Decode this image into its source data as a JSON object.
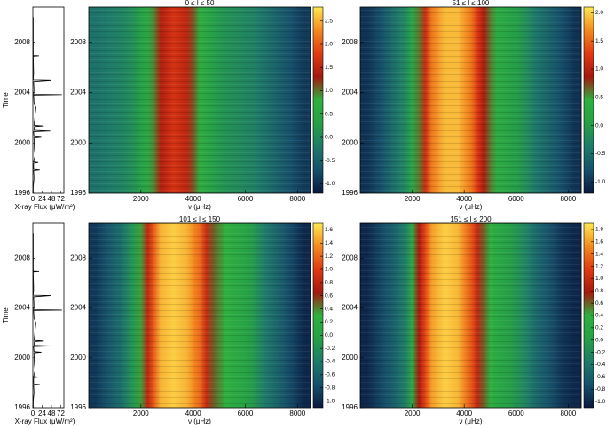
{
  "chart_data": [
    {
      "type": "line",
      "xlabel": "X-ray Flux (μW/m²)",
      "ylabel": "Time",
      "color": "#000000",
      "xlim": [
        0,
        80
      ],
      "xticks": [
        0,
        24,
        48,
        72
      ],
      "ylim": [
        1996,
        2010.8
      ],
      "yticks": [
        1996,
        2000,
        2004,
        2008
      ],
      "y": [
        1996,
        1996.5,
        1997.2,
        1997.8,
        1997.85,
        1997.9,
        1998.4,
        1998.45,
        1998.5,
        1999.0,
        1999.5,
        2000.4,
        2000.45,
        2000.5,
        2000.9,
        2000.95,
        2001.0,
        2001.3,
        2001.35,
        2001.4,
        2001.9,
        2002.3,
        2002.8,
        2003.2,
        2003.8,
        2003.83,
        2003.86,
        2004.2,
        2004.9,
        2005.0,
        2005.03,
        2005.06,
        2005.5,
        2006.9,
        2006.93,
        2006.96,
        2008,
        2010
      ],
      "values": [
        1,
        1,
        3,
        2,
        18,
        2,
        2,
        14,
        2,
        6,
        4,
        3,
        22,
        3,
        2,
        45,
        3,
        4,
        28,
        3,
        5,
        6,
        8,
        3,
        2,
        75,
        2,
        3,
        2,
        48,
        2,
        1,
        2,
        1,
        16,
        1,
        1,
        1
      ]
    },
    {
      "type": "heatmap",
      "title": "0 ≤ l ≤ 50",
      "xlabel": "ν (μHz)",
      "xlim": [
        0,
        8500
      ],
      "xticks": [
        2000,
        4000,
        6000,
        8000
      ],
      "ylim": [
        1996,
        2010.8
      ],
      "yticks": [
        1996,
        2000,
        2004,
        2008
      ],
      "x": [
        250,
        750,
        1250,
        1750,
        2250,
        2750,
        3250,
        3750,
        4250,
        4750,
        5250,
        5750,
        6250,
        6750,
        7250,
        7750,
        8250
      ],
      "values": [
        -0.3,
        -0.2,
        -0.1,
        0.1,
        0.5,
        1.4,
        1.7,
        1.5,
        0.7,
        0.3,
        0.1,
        0.0,
        -0.1,
        -0.3,
        -0.5,
        -0.7,
        -0.9
      ],
      "zlim": [
        -1.2,
        2.8
      ],
      "zticks": [
        {
          "value": -1.0,
          "label": "-1.0"
        },
        -0.5,
        {
          "value": 0,
          "label": "0.0"
        },
        0.5,
        {
          "value": 1,
          "label": "1.0"
        },
        1.5,
        {
          "value": 2,
          "label": "2.0"
        },
        2.5
      ],
      "colormap": [
        "#0b1840",
        "#16506a",
        "#1f7a6a",
        "#26a046",
        "#2fb040",
        "#a41810",
        "#e03a12",
        "#f28a20",
        "#ffe850"
      ]
    },
    {
      "type": "heatmap",
      "title": "51 ≤ l ≤ 100",
      "xlabel": "ν (μHz)",
      "xlim": [
        0,
        8500
      ],
      "xticks": [
        2000,
        4000,
        6000,
        8000
      ],
      "ylim": [
        1996,
        2010.8
      ],
      "yticks": [
        1996,
        2000,
        2004,
        2008
      ],
      "x": [
        250,
        750,
        1250,
        1750,
        2250,
        2750,
        3250,
        3750,
        4250,
        4750,
        5250,
        5750,
        6250,
        6750,
        7250,
        7750,
        8250
      ],
      "values": [
        -1.0,
        -0.8,
        -0.5,
        -0.2,
        0.6,
        1.6,
        1.9,
        1.9,
        1.6,
        0.9,
        0.3,
        0.1,
        -0.1,
        -0.4,
        -0.6,
        -0.8,
        -1.0
      ],
      "zlim": [
        -1.2,
        2.1
      ],
      "zticks": [
        {
          "value": -1.0,
          "label": "-1.0"
        },
        -0.5,
        {
          "value": 0,
          "label": "0.0"
        },
        0.5,
        {
          "value": 1,
          "label": "1.0"
        },
        1.5,
        {
          "value": 2,
          "label": "2.0"
        }
      ],
      "colormap": [
        "#0b1840",
        "#16506a",
        "#1f7a6a",
        "#26a046",
        "#2fb040",
        "#a41810",
        "#e03a12",
        "#f28a20",
        "#ffe850"
      ]
    },
    {
      "type": "line",
      "xlabel": "X-ray Flux (μW/m²)",
      "ylabel": "Time",
      "color": "#000000",
      "xlim": [
        0,
        80
      ],
      "xticks": [
        0,
        24,
        48,
        72
      ],
      "ylim": [
        1996,
        2010.8
      ],
      "yticks": [
        1996,
        2000,
        2004,
        2008
      ],
      "y": [
        1996,
        1996.5,
        1997.2,
        1997.8,
        1997.85,
        1997.9,
        1998.4,
        1998.45,
        1998.5,
        1999.0,
        1999.5,
        2000.4,
        2000.45,
        2000.5,
        2000.9,
        2000.95,
        2001.0,
        2001.3,
        2001.35,
        2001.4,
        2001.9,
        2002.3,
        2002.8,
        2003.2,
        2003.8,
        2003.83,
        2003.86,
        2004.2,
        2004.9,
        2005.0,
        2005.03,
        2005.06,
        2005.5,
        2006.9,
        2006.93,
        2006.96,
        2008,
        2010
      ],
      "values": [
        1,
        1,
        3,
        2,
        18,
        2,
        2,
        14,
        2,
        6,
        4,
        3,
        22,
        3,
        2,
        45,
        3,
        4,
        28,
        3,
        5,
        6,
        8,
        3,
        2,
        75,
        2,
        3,
        2,
        48,
        2,
        1,
        2,
        1,
        16,
        1,
        1,
        1
      ]
    },
    {
      "type": "heatmap",
      "title": "101 ≤ l ≤ 150",
      "xlabel": "ν (μHz)",
      "xlim": [
        0,
        8500
      ],
      "xticks": [
        2000,
        4000,
        6000,
        8000
      ],
      "ylim": [
        1996,
        2010.8
      ],
      "yticks": [
        1996,
        2000,
        2004,
        2008
      ],
      "x": [
        250,
        750,
        1250,
        1750,
        2250,
        2750,
        3250,
        3750,
        4250,
        4750,
        5250,
        5750,
        6250,
        6750,
        7250,
        7750,
        8250
      ],
      "values": [
        -0.9,
        -0.7,
        -0.5,
        -0.1,
        0.8,
        1.5,
        1.6,
        1.5,
        1.2,
        0.5,
        0.3,
        0.1,
        -0.1,
        -0.4,
        -0.6,
        -0.8,
        -1.0
      ],
      "zlim": [
        -1.1,
        1.7
      ],
      "zticks": [
        {
          "value": -1.0,
          "label": "-1.0"
        },
        -0.8,
        -0.6,
        -0.4,
        -0.2,
        {
          "value": 0,
          "label": "0.0"
        },
        0.2,
        0.4,
        0.6,
        0.8,
        {
          "value": 1,
          "label": "1.0"
        },
        1.2,
        1.4,
        1.6
      ],
      "colormap": [
        "#0b1840",
        "#16506a",
        "#1f7a6a",
        "#26a046",
        "#2fb040",
        "#a41810",
        "#e03a12",
        "#f28a20",
        "#ffe850"
      ]
    },
    {
      "type": "heatmap",
      "title": "151 ≤ l ≤ 200",
      "xlabel": "ν (μHz)",
      "xlim": [
        0,
        8500
      ],
      "xticks": [
        2000,
        4000,
        6000,
        8000
      ],
      "ylim": [
        1996,
        2010.8
      ],
      "yticks": [
        1996,
        2000,
        2004,
        2008
      ],
      "x": [
        250,
        750,
        1250,
        1750,
        2250,
        2750,
        3250,
        3750,
        4250,
        4750,
        5250,
        5750,
        6250,
        6750,
        7250,
        7750,
        8250
      ],
      "values": [
        -1.0,
        -0.8,
        -0.6,
        -0.3,
        0.8,
        1.6,
        1.8,
        1.7,
        1.3,
        0.6,
        0.2,
        0.0,
        -0.2,
        -0.5,
        -0.7,
        -0.9,
        -1.0
      ],
      "zlim": [
        -1.1,
        1.9
      ],
      "zticks": [
        {
          "value": -1.0,
          "label": "-1.0"
        },
        -0.8,
        -0.6,
        -0.4,
        -0.2,
        {
          "value": 0,
          "label": "0.0"
        },
        0.2,
        0.4,
        0.6,
        0.8,
        {
          "value": 1,
          "label": "1.0"
        },
        1.2,
        1.4,
        1.6,
        1.8
      ],
      "colormap": [
        "#0b1840",
        "#16506a",
        "#1f7a6a",
        "#26a046",
        "#2fb040",
        "#a41810",
        "#e03a12",
        "#f28a20",
        "#ffe850"
      ]
    }
  ]
}
